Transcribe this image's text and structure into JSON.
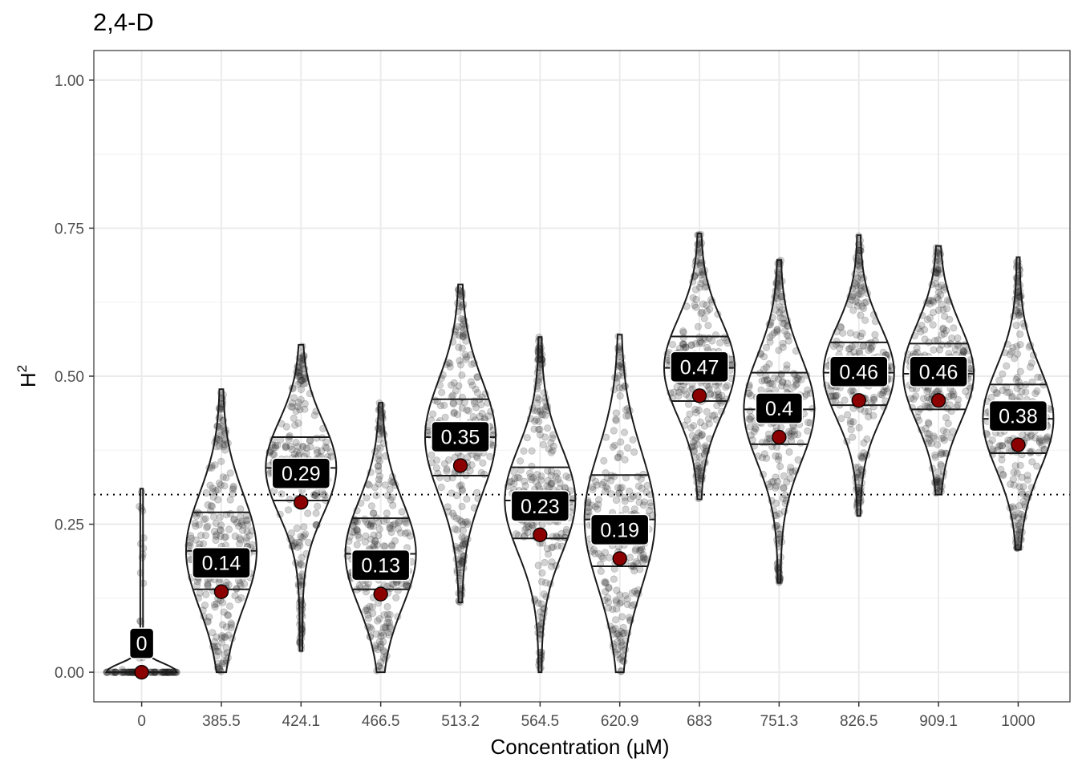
{
  "chart_data": {
    "type": "violin",
    "title": "2,4-D",
    "xlabel": "Concentration (µM)",
    "ylabel": "H",
    "ylabel_superscript": "2",
    "ylim": [
      -0.05,
      1.05
    ],
    "yticks": [
      0.0,
      0.25,
      0.5,
      0.75,
      1.0
    ],
    "ytick_labels": [
      "0.00",
      "0.25",
      "0.50",
      "0.75",
      "1.00"
    ],
    "reference_line": 0.3,
    "categories": [
      "0",
      "385.5",
      "424.1",
      "466.5",
      "513.2",
      "564.5",
      "620.9",
      "683",
      "751.3",
      "826.5",
      "909.1",
      "1000"
    ],
    "series": [
      {
        "name": "0",
        "estimate": 0.0,
        "label": "0",
        "min": 0.0,
        "max": 0.31,
        "q1": 0.0,
        "median": 0.0,
        "q3": 0.0
      },
      {
        "name": "385.5",
        "estimate": 0.136,
        "label": "0.14",
        "min": 0.0,
        "max": 0.478,
        "q1": 0.14,
        "median": 0.205,
        "q3": 0.27
      },
      {
        "name": "424.1",
        "estimate": 0.287,
        "label": "0.29",
        "min": 0.036,
        "max": 0.553,
        "q1": 0.29,
        "median": 0.345,
        "q3": 0.397
      },
      {
        "name": "466.5",
        "estimate": 0.132,
        "label": "0.13",
        "min": 0.0,
        "max": 0.455,
        "q1": 0.14,
        "median": 0.2,
        "q3": 0.26
      },
      {
        "name": "513.2",
        "estimate": 0.349,
        "label": "0.35",
        "min": 0.118,
        "max": 0.655,
        "q1": 0.332,
        "median": 0.397,
        "q3": 0.461
      },
      {
        "name": "564.5",
        "estimate": 0.232,
        "label": "0.23",
        "min": 0.0,
        "max": 0.566,
        "q1": 0.226,
        "median": 0.29,
        "q3": 0.346
      },
      {
        "name": "620.9",
        "estimate": 0.192,
        "label": "0.19",
        "min": 0.0,
        "max": 0.57,
        "q1": 0.179,
        "median": 0.258,
        "q3": 0.333
      },
      {
        "name": "683",
        "estimate": 0.467,
        "label": "0.47",
        "min": 0.292,
        "max": 0.741,
        "q1": 0.458,
        "median": 0.514,
        "q3": 0.567
      },
      {
        "name": "751.3",
        "estimate": 0.397,
        "label": "0.4",
        "min": 0.151,
        "max": 0.696,
        "q1": 0.385,
        "median": 0.444,
        "q3": 0.506
      },
      {
        "name": "826.5",
        "estimate": 0.459,
        "label": "0.46",
        "min": 0.264,
        "max": 0.738,
        "q1": 0.451,
        "median": 0.506,
        "q3": 0.557
      },
      {
        "name": "909.1",
        "estimate": 0.459,
        "label": "0.46",
        "min": 0.3,
        "max": 0.72,
        "q1": 0.444,
        "median": 0.504,
        "q3": 0.555
      },
      {
        "name": "1000",
        "estimate": 0.384,
        "label": "0.38",
        "min": 0.207,
        "max": 0.701,
        "q1": 0.37,
        "median": 0.428,
        "q3": 0.486
      }
    ]
  },
  "colors": {
    "panel_border": "#333333",
    "grid_major": "#ebebeb",
    "grid_minor": "#f3f3f3",
    "violin_stroke": "#1a1a1a",
    "jitter_fill": "#333333",
    "estimate_point": "#8b0000",
    "label_bg": "#000000",
    "label_text": "#ffffff"
  }
}
